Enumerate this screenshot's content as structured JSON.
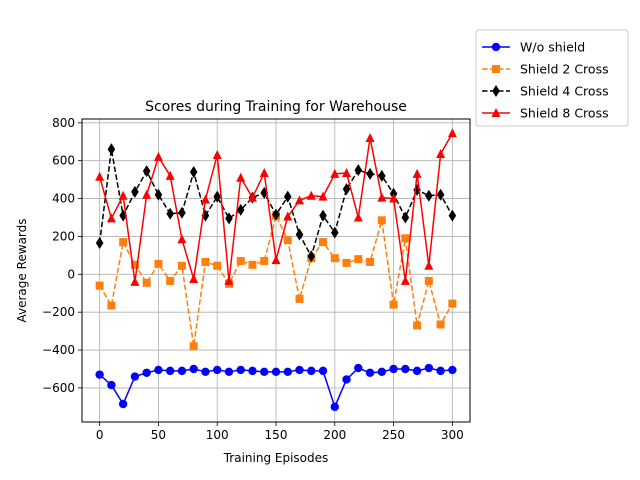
{
  "chart_data": {
    "type": "line",
    "title": "Scores during Training for Warehouse",
    "xlabel": "Training Episodes",
    "ylabel": "Average Rewards",
    "xlim": [
      -15,
      315
    ],
    "ylim": [
      -780,
      820
    ],
    "xticks": [
      0,
      50,
      100,
      150,
      200,
      250,
      300
    ],
    "yticks": [
      -600,
      -400,
      -200,
      0,
      200,
      400,
      600,
      800
    ],
    "grid": true,
    "legend_position": "outside-top-right",
    "x": [
      0,
      10,
      20,
      30,
      40,
      50,
      60,
      70,
      80,
      90,
      100,
      110,
      120,
      130,
      140,
      150,
      160,
      170,
      180,
      190,
      200,
      210,
      220,
      230,
      240,
      250,
      260,
      270,
      280,
      290,
      300
    ],
    "series": [
      {
        "name": "W/o shield",
        "color": "#0000ff",
        "linestyle": "solid",
        "marker": "circle",
        "values": [
          -530,
          -585,
          -685,
          -540,
          -520,
          -505,
          -510,
          -510,
          -500,
          -515,
          -505,
          -515,
          -505,
          -510,
          -515,
          -515,
          -515,
          -505,
          -510,
          -510,
          -700,
          -555,
          -495,
          -520,
          -515,
          -500,
          -500,
          -510,
          -495,
          -510,
          -505
        ]
      },
      {
        "name": "Shield 2 Cross",
        "color": "#ff7f0e",
        "linestyle": "dashed",
        "marker": "square",
        "values": [
          -60,
          -165,
          170,
          50,
          -45,
          55,
          -35,
          45,
          -380,
          65,
          45,
          -50,
          70,
          50,
          70,
          310,
          180,
          -130,
          85,
          170,
          85,
          60,
          80,
          65,
          285,
          -160,
          190,
          -270,
          -35,
          -265,
          -155
        ]
      },
      {
        "name": "Shield 4 Cross",
        "color": "#000000",
        "linestyle": "dashed",
        "marker": "diamond",
        "values": [
          165,
          660,
          310,
          435,
          545,
          420,
          320,
          325,
          540,
          310,
          410,
          295,
          340,
          405,
          430,
          315,
          410,
          210,
          95,
          310,
          220,
          450,
          550,
          530,
          520,
          425,
          300,
          445,
          415,
          420,
          310
        ]
      },
      {
        "name": "Shield 8 Cross",
        "color": "#ff0000",
        "linestyle": "solid",
        "marker": "triangle",
        "values": [
          515,
          295,
          415,
          -40,
          420,
          620,
          520,
          185,
          -25,
          395,
          630,
          -35,
          510,
          405,
          535,
          75,
          305,
          390,
          415,
          410,
          530,
          535,
          300,
          720,
          405,
          400,
          -35,
          530,
          45,
          635,
          745
        ]
      }
    ]
  }
}
